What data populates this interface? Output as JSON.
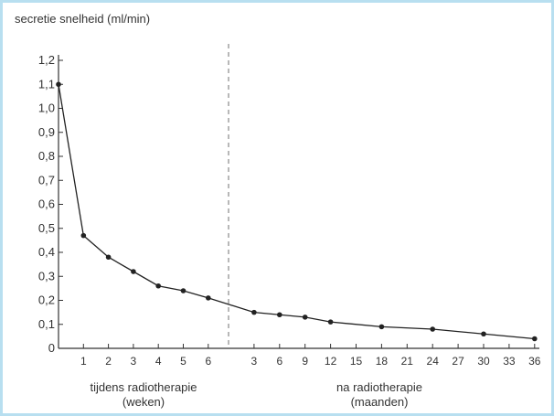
{
  "chart_data": {
    "type": "line",
    "title": "secretie snelheid (ml/min)",
    "ylim": [
      0,
      1.2
    ],
    "yticks": [
      "0",
      "0,1",
      "0,2",
      "0,3",
      "0,4",
      "0,5",
      "0,6",
      "0,7",
      "0,8",
      "0,9",
      "1,0",
      "1,1",
      "1,2"
    ],
    "xticks": [
      "1",
      "2",
      "3",
      "4",
      "5",
      "6",
      "3",
      "6",
      "9",
      "12",
      "15",
      "18",
      "21",
      "24",
      "27",
      "30",
      "33",
      "36"
    ],
    "groups": [
      {
        "line1": "tijdens radiotherapie",
        "line2": "(weken)"
      },
      {
        "line1": "na radiotherapie",
        "line2": "(maanden)"
      }
    ],
    "divider": "vertical dashed line between 'tijdens' and 'na' radiotherapie",
    "series": [
      {
        "points": [
          {
            "x": "0",
            "y": 1.1
          },
          {
            "x": "1",
            "y": 0.47
          },
          {
            "x": "2",
            "y": 0.38
          },
          {
            "x": "3",
            "y": 0.32
          },
          {
            "x": "4",
            "y": 0.26
          },
          {
            "x": "5",
            "y": 0.24
          },
          {
            "x": "6",
            "y": 0.21
          },
          {
            "x": "3",
            "y": 0.15
          },
          {
            "x": "6",
            "y": 0.14
          },
          {
            "x": "9",
            "y": 0.13
          },
          {
            "x": "12",
            "y": 0.11
          },
          {
            "x": "18",
            "y": 0.09
          },
          {
            "x": "24",
            "y": 0.08
          },
          {
            "x": "30",
            "y": 0.06
          },
          {
            "x": "36",
            "y": 0.04
          }
        ]
      }
    ],
    "grid": false,
    "line_color": "#222222"
  }
}
